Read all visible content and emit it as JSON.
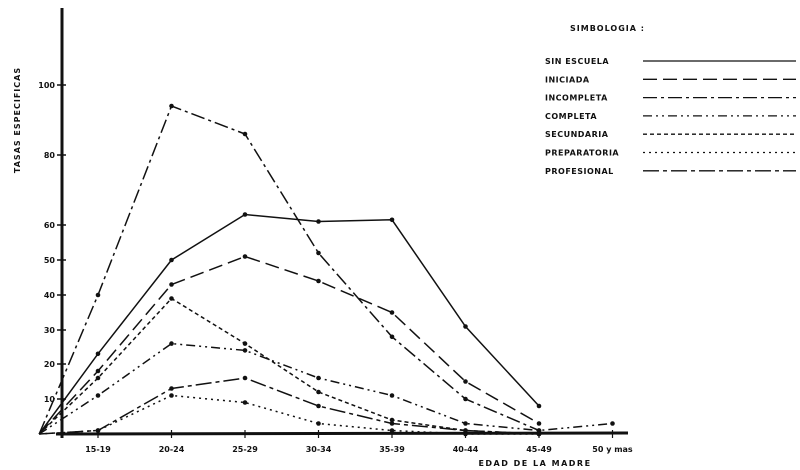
{
  "chart_data": {
    "type": "line",
    "ylabel": "TASAS ESPECIFICAS",
    "xlabel": "EDAD DE LA MADRE",
    "categories": [
      "15-19",
      "20-24",
      "25-29",
      "30-34",
      "35-39",
      "40-44",
      "45-49",
      "50 y más"
    ],
    "x_tick_labels": [
      "15-19",
      "20-24",
      "25-29",
      "30-34",
      "35-39",
      "40-44",
      "45-49",
      "50 y mas"
    ],
    "y_tick_labels": [
      "10",
      "20",
      "30",
      "40",
      "50",
      "60",
      "80",
      "100"
    ],
    "legend_title": "SIMBOLOGIA :",
    "legend_position": "top-right",
    "series": [
      {
        "name": "SIN ESCUELA",
        "dash": "none",
        "color": "#111111",
        "points": [
          [
            -0.8,
            0
          ],
          [
            0,
            23
          ],
          [
            1,
            50
          ],
          [
            2,
            63
          ],
          [
            3,
            61
          ],
          [
            4,
            61.5
          ],
          [
            5,
            31
          ],
          [
            6,
            8
          ]
        ]
      },
      {
        "name": "INICIADA",
        "dash": "14,6",
        "color": "#111111",
        "points": [
          [
            -0.8,
            0
          ],
          [
            0,
            18
          ],
          [
            1,
            43
          ],
          [
            2,
            51
          ],
          [
            3,
            44
          ],
          [
            4,
            35
          ],
          [
            5,
            15
          ],
          [
            6,
            3
          ]
        ]
      },
      {
        "name": "INCOMPLETA",
        "dash": "14,4,3,4",
        "color": "#111111",
        "points": [
          [
            -0.8,
            0
          ],
          [
            0,
            40
          ],
          [
            1,
            94
          ],
          [
            2,
            86
          ],
          [
            3,
            52
          ],
          [
            4,
            28
          ],
          [
            5,
            10
          ],
          [
            6,
            1
          ]
        ]
      },
      {
        "name": "COMPLETA",
        "dash": "9,4,2,4,2,4",
        "color": "#111111",
        "points": [
          [
            -0.8,
            0
          ],
          [
            0,
            11
          ],
          [
            1,
            26
          ],
          [
            2,
            24
          ],
          [
            3,
            16
          ],
          [
            4,
            11
          ],
          [
            5,
            3
          ],
          [
            6,
            1
          ],
          [
            7,
            3
          ]
        ]
      },
      {
        "name": "SECUNDARIA",
        "dash": "4,3",
        "color": "#111111",
        "points": [
          [
            -0.8,
            0
          ],
          [
            0,
            16
          ],
          [
            1,
            39
          ],
          [
            2,
            26
          ],
          [
            3,
            12
          ],
          [
            4,
            4
          ],
          [
            5,
            1
          ],
          [
            6,
            0
          ]
        ]
      },
      {
        "name": "PREPARATORIA",
        "dash": "2,4",
        "color": "#111111",
        "points": [
          [
            -0.8,
            0
          ],
          [
            0,
            1
          ],
          [
            1,
            11
          ],
          [
            2,
            9
          ],
          [
            3,
            3
          ],
          [
            4,
            1
          ],
          [
            5,
            0
          ],
          [
            6,
            0
          ]
        ]
      },
      {
        "name": "PROFESIONAL",
        "dash": "16,4,4,4",
        "color": "#111111",
        "points": [
          [
            -0.8,
            0
          ],
          [
            0,
            1
          ],
          [
            1,
            13
          ],
          [
            2,
            16
          ],
          [
            3,
            8
          ],
          [
            4,
            3
          ],
          [
            5,
            1
          ],
          [
            6,
            0
          ]
        ]
      }
    ],
    "grid": false
  }
}
